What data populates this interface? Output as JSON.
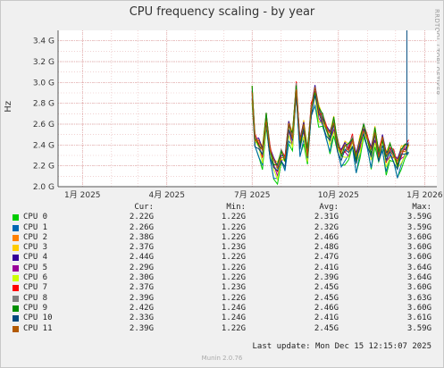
{
  "window": {
    "title": "CPU frequency scaling - by year",
    "side_text": "RRDTOOL / TOBI OETIKER",
    "footer_update": "Last update: Mon Dec 15 12:15:07 2025",
    "footer_brand": "Munin 2.0.76"
  },
  "legend": {
    "headers": [
      "Cur:",
      "Min:",
      "Avg:",
      "Max:"
    ],
    "rows": [
      {
        "name": "CPU 0",
        "color": "#00cc00",
        "cur": "2.22G",
        "min": "1.22G",
        "avg": "2.31G",
        "max": "3.59G"
      },
      {
        "name": "CPU 1",
        "color": "#0066b3",
        "cur": "2.26G",
        "min": "1.22G",
        "avg": "2.32G",
        "max": "3.59G"
      },
      {
        "name": "CPU 2",
        "color": "#ff8000",
        "cur": "2.38G",
        "min": "1.22G",
        "avg": "2.46G",
        "max": "3.60G"
      },
      {
        "name": "CPU 3",
        "color": "#ffcc00",
        "cur": "2.37G",
        "min": "1.23G",
        "avg": "2.48G",
        "max": "3.60G"
      },
      {
        "name": "CPU 4",
        "color": "#330099",
        "cur": "2.44G",
        "min": "1.22G",
        "avg": "2.47G",
        "max": "3.60G"
      },
      {
        "name": "CPU 5",
        "color": "#990099",
        "cur": "2.29G",
        "min": "1.22G",
        "avg": "2.41G",
        "max": "3.64G"
      },
      {
        "name": "CPU 6",
        "color": "#ccff00",
        "cur": "2.30G",
        "min": "1.22G",
        "avg": "2.39G",
        "max": "3.64G"
      },
      {
        "name": "CPU 7",
        "color": "#ff0000",
        "cur": "2.37G",
        "min": "1.23G",
        "avg": "2.45G",
        "max": "3.60G"
      },
      {
        "name": "CPU 8",
        "color": "#808080",
        "cur": "2.39G",
        "min": "1.22G",
        "avg": "2.45G",
        "max": "3.63G"
      },
      {
        "name": "CPU 9",
        "color": "#008f00",
        "cur": "2.42G",
        "min": "1.24G",
        "avg": "2.46G",
        "max": "3.60G"
      },
      {
        "name": "CPU 10",
        "color": "#00487d",
        "cur": "2.33G",
        "min": "1.24G",
        "avg": "2.41G",
        "max": "3.61G"
      },
      {
        "name": "CPU 11",
        "color": "#b35a00",
        "cur": "2.39G",
        "min": "1.22G",
        "avg": "2.45G",
        "max": "3.59G"
      }
    ]
  },
  "chart_data": {
    "type": "line",
    "title": "CPU frequency scaling - by year",
    "ylabel": "Hz",
    "ylim": [
      2.0,
      3.5
    ],
    "y_ticks": [
      "2.0 G",
      "2.2 G",
      "2.4 G",
      "2.6 G",
      "2.8 G",
      "3.0 G",
      "3.2 G",
      "3.4 G"
    ],
    "y_tick_values": [
      2.0,
      2.2,
      2.4,
      2.6,
      2.8,
      3.0,
      3.2,
      3.4
    ],
    "x_ticks": [
      "1月 2025",
      "4月 2025",
      "7月 2025",
      "10月 2025",
      "1月 2026"
    ],
    "x_tick_dates": [
      "2025-01-01",
      "2025-04-01",
      "2025-07-01",
      "2025-10-01",
      "2026-01-01"
    ],
    "xlim": [
      "2024-12-06",
      "2026-01-14"
    ],
    "grid": true,
    "series_names": [
      "CPU 0",
      "CPU 1",
      "CPU 2",
      "CPU 3",
      "CPU 4",
      "CPU 5",
      "CPU 6",
      "CPU 7",
      "CPU 8",
      "CPU 9",
      "CPU 10",
      "CPU 11"
    ],
    "x": [
      "2025-07-01",
      "2025-07-04",
      "2025-07-08",
      "2025-07-12",
      "2025-07-16",
      "2025-07-20",
      "2025-07-24",
      "2025-07-28",
      "2025-08-01",
      "2025-08-05",
      "2025-08-09",
      "2025-08-13",
      "2025-08-17",
      "2025-08-21",
      "2025-08-25",
      "2025-08-29",
      "2025-09-02",
      "2025-09-06",
      "2025-09-10",
      "2025-09-14",
      "2025-09-18",
      "2025-09-22",
      "2025-09-26",
      "2025-09-30",
      "2025-10-04",
      "2025-10-08",
      "2025-10-12",
      "2025-10-16",
      "2025-10-20",
      "2025-10-24",
      "2025-10-28",
      "2025-11-01",
      "2025-11-05",
      "2025-11-09",
      "2025-11-13",
      "2025-11-17",
      "2025-11-21",
      "2025-11-25",
      "2025-11-29",
      "2025-12-03",
      "2025-12-07",
      "2025-12-11",
      "2025-12-15"
    ],
    "base_values": [
      2.9,
      2.45,
      2.4,
      2.3,
      2.65,
      2.35,
      2.2,
      2.15,
      2.3,
      2.25,
      2.55,
      2.45,
      2.95,
      2.4,
      2.55,
      2.3,
      2.75,
      2.9,
      2.7,
      2.65,
      2.55,
      2.45,
      2.6,
      2.4,
      2.3,
      2.35,
      2.35,
      2.45,
      2.25,
      2.4,
      2.55,
      2.45,
      2.3,
      2.5,
      2.3,
      2.45,
      2.25,
      2.35,
      2.3,
      2.2,
      2.3,
      2.35,
      2.4
    ],
    "series_offsets": [
      -0.1,
      -0.08,
      0.03,
      0.05,
      0.04,
      -0.02,
      -0.04,
      0.02,
      0.02,
      0.03,
      -0.03,
      0.02
    ],
    "spike_date": "2025-12-13",
    "spike_value": 3.5
  }
}
